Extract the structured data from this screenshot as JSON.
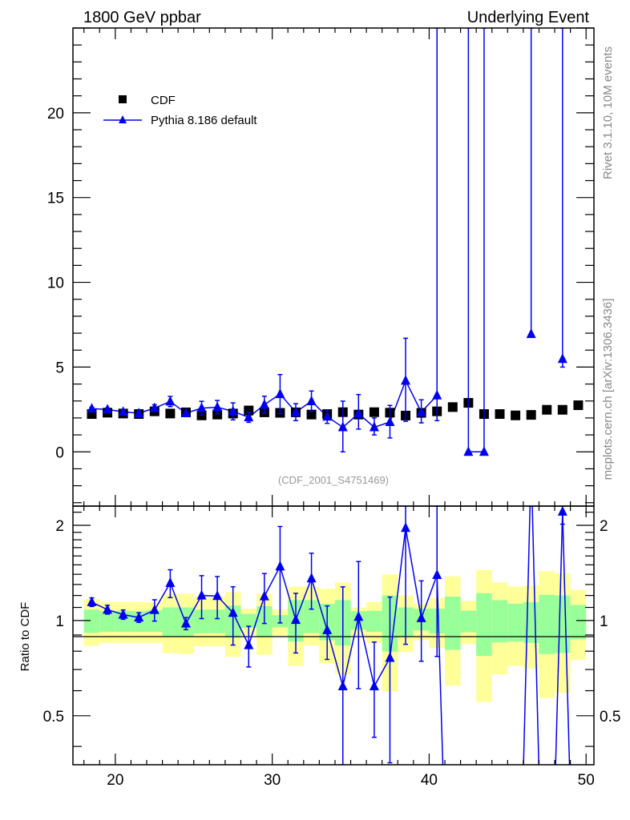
{
  "chart_data": {
    "type": "scatter",
    "title_left": "1800 GeV ppbar",
    "title_right": "Underlying Event",
    "side_label_top": "Rivet 3.1.10, 10M events",
    "side_label_bottom": "mcplots.cern.ch [arXiv:1306.3436]",
    "analysis_label": "(CDF_2001_S4751469)",
    "ratio_ylabel": "Ratio to CDF",
    "xlim": [
      17.3,
      50.5
    ],
    "ylim": [
      -3.2,
      25
    ],
    "ratio_ylim": [
      0.35,
      2.3
    ],
    "x_ticks": [
      20,
      30,
      40,
      50
    ],
    "x_tick_labels": [
      "20",
      "30",
      "40",
      "50"
    ],
    "y_ticks": [
      0,
      5,
      10,
      15,
      20
    ],
    "y_tick_labels": [
      "0",
      "5",
      "10",
      "15",
      "20"
    ],
    "ratio_ticks": [
      0.5,
      1,
      2
    ],
    "ratio_tick_labels": [
      "0.5",
      "1",
      "2"
    ],
    "legend": {
      "position": "top-left",
      "entries": [
        "CDF",
        "Pythia 8.186 default"
      ]
    },
    "colors": {
      "data": "#000000",
      "mc": "#0000ee",
      "band_total": "#ffff99",
      "band_stat": "#99ff99"
    },
    "x": [
      18.5,
      19.5,
      20.5,
      21.5,
      22.5,
      23.5,
      24.5,
      25.5,
      26.5,
      27.5,
      28.5,
      29.5,
      30.5,
      31.5,
      32.5,
      33.5,
      34.5,
      35.5,
      36.5,
      37.5,
      38.5,
      39.5,
      40.5,
      41.5,
      42.5,
      43.5,
      44.5,
      45.5,
      46.5,
      47.5,
      48.5,
      49.5
    ],
    "series": [
      {
        "name": "CDF",
        "values": [
          2.23,
          2.31,
          2.26,
          2.23,
          2.39,
          2.26,
          2.33,
          2.15,
          2.2,
          2.26,
          2.44,
          2.33,
          2.3,
          2.33,
          2.2,
          2.23,
          2.34,
          2.2,
          2.34,
          2.31,
          2.14,
          2.3,
          2.39,
          2.64,
          2.89,
          2.23,
          2.23,
          2.15,
          2.18,
          2.48,
          2.48,
          2.75
        ],
        "ratio_band_total": [
          [
            0.831,
            1.17
          ],
          [
            0.85,
            1.143
          ],
          [
            0.85,
            1.143
          ],
          [
            0.85,
            1.143
          ],
          [
            0.85,
            1.14
          ],
          [
            0.788,
            1.215
          ],
          [
            0.783,
            1.215
          ],
          [
            0.829,
            1.19
          ],
          [
            0.829,
            1.19
          ],
          [
            0.768,
            1.23
          ],
          [
            0.9,
            1.09
          ],
          [
            0.78,
            1.215
          ],
          [
            0.895,
            1.083
          ],
          [
            0.719,
            1.28
          ],
          [
            0.834,
            1.28
          ],
          [
            0.733,
            1.26
          ],
          [
            0.676,
            1.32
          ],
          [
            0.895,
            1.1
          ],
          [
            0.85,
            1.143
          ],
          [
            0.597,
            1.4
          ],
          [
            0.795,
            1.2
          ],
          [
            0.866,
            1.13
          ],
          [
            0.818,
            1.18
          ],
          [
            0.623,
            1.38
          ],
          [
            0.842,
            1.154
          ],
          [
            0.553,
            1.443
          ],
          [
            0.676,
            1.32
          ],
          [
            0.719,
            1.28
          ],
          [
            0.705,
            1.29
          ],
          [
            0.569,
            1.432
          ],
          [
            0.591,
            1.41
          ],
          [
            0.751,
            1.25
          ]
        ],
        "ratio_band_stat": [
          [
            0.914,
            1.083
          ],
          [
            0.921,
            1.073
          ],
          [
            0.921,
            1.073
          ],
          [
            0.921,
            1.07
          ],
          [
            0.921,
            1.077
          ],
          [
            0.892,
            1.1
          ],
          [
            0.888,
            1.1
          ],
          [
            0.912,
            1.083
          ],
          [
            0.912,
            1.083
          ],
          [
            0.883,
            1.115
          ],
          [
            0.948,
            1.05
          ],
          [
            0.888,
            1.11
          ],
          [
            0.953,
            1.04
          ],
          [
            0.858,
            1.16
          ],
          [
            0.914,
            1.16
          ],
          [
            0.866,
            1.13
          ],
          [
            0.834,
            1.16
          ],
          [
            0.935,
            1.07
          ],
          [
            0.921,
            1.073
          ],
          [
            0.798,
            1.2
          ],
          [
            0.892,
            1.1
          ],
          [
            0.93,
            1.09
          ],
          [
            0.909,
            1.09
          ],
          [
            0.808,
            1.19
          ],
          [
            0.918,
            1.075
          ],
          [
            0.773,
            1.22
          ],
          [
            0.853,
            1.16
          ],
          [
            0.858,
            1.13
          ],
          [
            0.85,
            1.143
          ],
          [
            0.783,
            1.206
          ],
          [
            0.79,
            1.2
          ],
          [
            0.873,
            1.12
          ]
        ]
      },
      {
        "name": "Pythia 8.186 default",
        "values": [
          2.55,
          2.5,
          2.36,
          2.28,
          2.58,
          2.97,
          2.28,
          2.58,
          2.63,
          2.39,
          2.04,
          2.78,
          3.41,
          2.34,
          2.99,
          2.08,
          1.45,
          2.26,
          1.45,
          1.76,
          4.2,
          2.34,
          3.33,
          null,
          0,
          0,
          null,
          null,
          6.95,
          null,
          5.48,
          null
        ],
        "err_low": [
          0.08,
          0.08,
          0.08,
          0.08,
          0.2,
          0.3,
          0.1,
          0.4,
          0.4,
          0.5,
          0.3,
          0.5,
          1.15,
          0.5,
          0.6,
          0.4,
          1.45,
          0.92,
          0.45,
          0.94,
          2.4,
          0.63,
          1.49,
          null,
          0,
          0,
          null,
          null,
          0,
          null,
          0.48,
          null
        ],
        "err_high": [
          0.08,
          0.08,
          0.08,
          0.08,
          0.2,
          0.3,
          0.1,
          0.4,
          0.4,
          0.5,
          0.3,
          0.5,
          1.15,
          0.5,
          0.6,
          0.4,
          1.54,
          1.12,
          0.55,
          0.98,
          2.5,
          0.73,
          40,
          null,
          40,
          40,
          null,
          null,
          40,
          null,
          40,
          null
        ]
      }
    ]
  }
}
